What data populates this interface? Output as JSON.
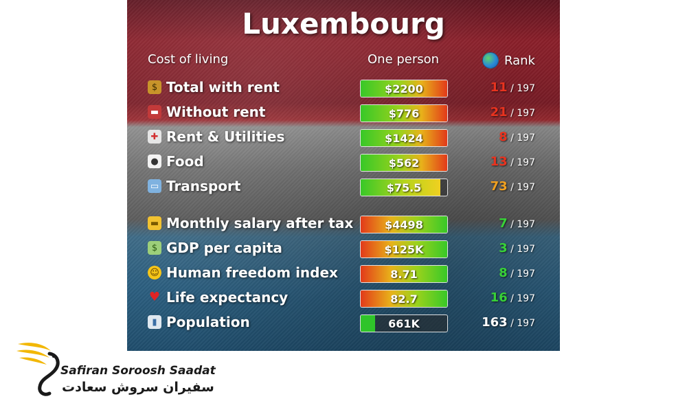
{
  "title": "Luxembourg",
  "header": {
    "label": "Cost of living",
    "column": "One person",
    "rank": "Rank"
  },
  "rows": [
    {
      "icon": "money-bag-icon",
      "label": "Total with rent",
      "value": "$2200",
      "rank": "11",
      "rank_color": "#e8331f",
      "total": " / 197",
      "bar_fill_fraction": 1.0,
      "bar_style": "red-green"
    },
    {
      "icon": "sofa-icon",
      "label": "Without rent",
      "value": "$776",
      "rank": "21",
      "rank_color": "#e8331f",
      "total": " / 197",
      "bar_fill_fraction": 1.0,
      "bar_style": "red-green"
    },
    {
      "icon": "hospital-building-icon",
      "label": "Rent & Utilities",
      "value": "$1424",
      "rank": "8",
      "rank_color": "#e8331f",
      "total": " / 197",
      "bar_fill_fraction": 1.0,
      "bar_style": "red-green"
    },
    {
      "icon": "plate-cutlery-icon",
      "label": "Food",
      "value": "$562",
      "rank": "13",
      "rank_color": "#e8331f",
      "total": " / 197",
      "bar_fill_fraction": 1.0,
      "bar_style": "red-green"
    },
    {
      "icon": "minibus-icon",
      "label": "Transport",
      "value": "$75.5",
      "rank": "73",
      "rank_color": "#f0a020",
      "total": " / 197",
      "bar_fill_fraction": 0.92,
      "bar_style": "yellow-green"
    },
    {
      "icon": "credit-card-icon",
      "label": "Monthly salary after tax",
      "value": "$4498",
      "rank": "7",
      "rank_color": "#38d138",
      "total": " / 197",
      "bar_fill_fraction": 1.0,
      "bar_style": "green-red"
    },
    {
      "icon": "banknotes-icon",
      "label": "GDP per capita",
      "value": "$125K",
      "rank": "3",
      "rank_color": "#38d138",
      "total": " / 197",
      "bar_fill_fraction": 1.0,
      "bar_style": "green-red"
    },
    {
      "icon": "smiley-face-icon",
      "label": "Human freedom index",
      "value": "8.71",
      "rank": "8",
      "rank_color": "#38d138",
      "total": " / 197",
      "bar_fill_fraction": 1.0,
      "bar_style": "green-red"
    },
    {
      "icon": "heart-icon",
      "label": "Life expectancy",
      "value": "82.7",
      "rank": "16",
      "rank_color": "#38d138",
      "total": " / 197",
      "bar_fill_fraction": 1.0,
      "bar_style": "green-red"
    },
    {
      "icon": "bar-chart-icon",
      "label": "Population",
      "value": "661K",
      "rank": "163",
      "rank_color": "#ffffff",
      "total": " / 197",
      "bar_fill_fraction": 0.17,
      "bar_style": "green-solid"
    }
  ],
  "brand": {
    "name_en": "Safiran Soroosh Saadat",
    "name_fa": "سفیران سروش سعادت",
    "logo": "winged-bird-logo"
  },
  "colors": {
    "accent_gold": "#f2b705",
    "rank_red": "#e8331f",
    "rank_orange": "#f0a020",
    "rank_green": "#38d138"
  }
}
